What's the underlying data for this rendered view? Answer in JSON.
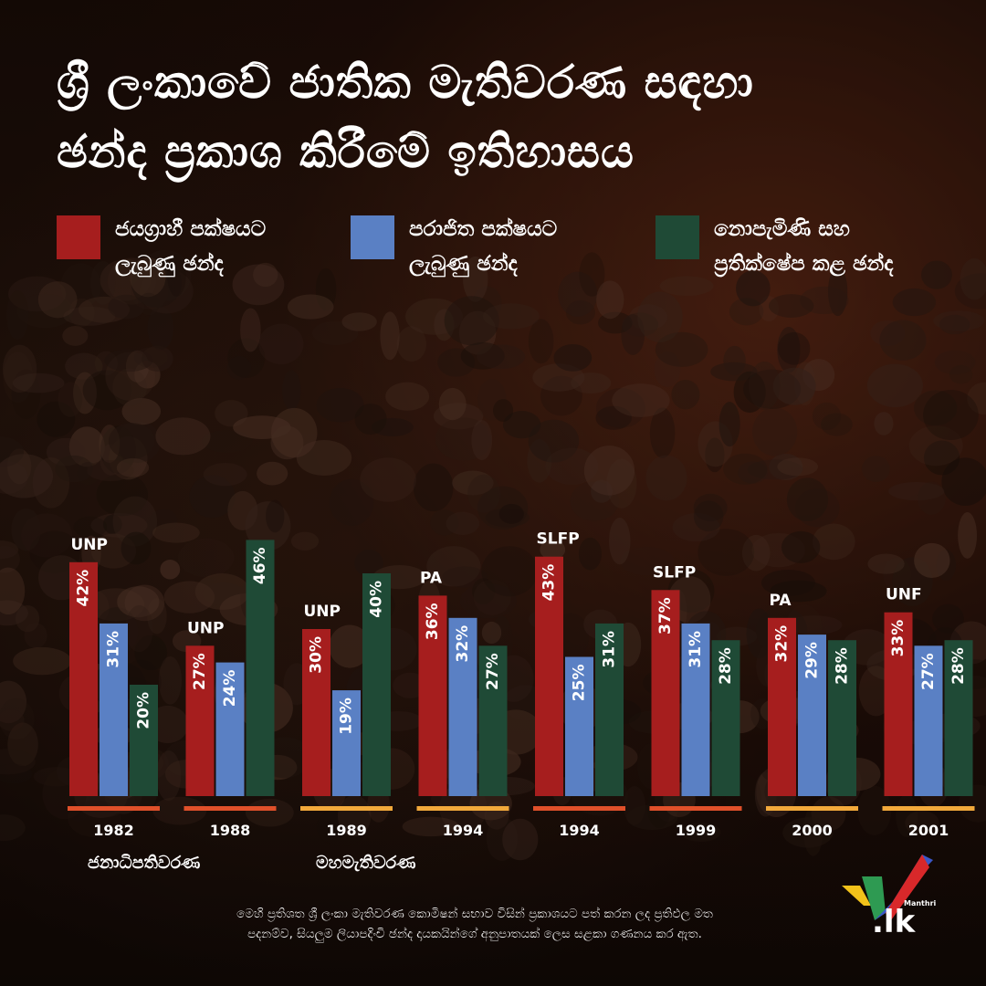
{
  "title": {
    "line1": "ශ්‍රී ලංකාවේ ජාතික මැතිවරණ සඳහා",
    "line2": "ඡන්ද ප්‍රකාශ කිරීමේ ඉතිහාසය"
  },
  "legend": [
    {
      "line1": "ජයග්‍රාහී පක්ෂයට",
      "line2": "ලැබුණු ඡන්ද",
      "color": "#a61e1e"
    },
    {
      "line1": "පරාජිත පක්ෂයට",
      "line2": "ලැබුණු ඡන්ද",
      "color": "#5a80c4"
    },
    {
      "line1": "නොපැමිණි සහ",
      "line2": "ප්‍රතික්ෂේප කළ ඡන්ද",
      "color": "#1f4a36"
    }
  ],
  "groups": {
    "presidential": "ජනාධිපතිවරණ",
    "parliamentary": "මහමැතිවරණ"
  },
  "chart_data": {
    "type": "bar",
    "categories": [
      "1982",
      "1988",
      "1989",
      "1994",
      "1994",
      "1999",
      "2000",
      "2001"
    ],
    "winner_party": [
      "UNP",
      "UNP",
      "UNP",
      "PA",
      "SLFP",
      "SLFP",
      "PA",
      "UNF"
    ],
    "series": [
      {
        "name": "ජයග්‍රාහී පක්ෂයට ලැබුණු ඡන්ද",
        "color": "#a61e1e",
        "values": [
          42,
          27,
          30,
          36,
          43,
          37,
          32,
          33
        ]
      },
      {
        "name": "පරාජිත පක්ෂයට ලැබුණු ඡන්ද",
        "color": "#5a80c4",
        "values": [
          31,
          24,
          19,
          32,
          25,
          31,
          29,
          27
        ]
      },
      {
        "name": "නොපැමිණි සහ ප්‍රතික්ෂේප කළ ඡන්ද",
        "color": "#1f4a36",
        "values": [
          20,
          46,
          40,
          27,
          31,
          28,
          28,
          28
        ]
      }
    ],
    "value_suffix": "%",
    "underline_colors": [
      "#e0502a",
      "#e0502a",
      "#f2a93b",
      "#f2a93b",
      "#e0502a",
      "#e0502a",
      "#f2a93b",
      "#f2a93b"
    ],
    "ylim": [
      0,
      50
    ],
    "grid": false,
    "legend_position": "top"
  },
  "footnote": {
    "line1": "මෙහි ප්‍රතිශත ශ්‍රී ලංකා මැතිවරණ කොමිෂන් සභාව විසින් ප්‍රකාශයට පත් කරන ලද ප්‍රතිඵල මත",
    "line2": "පදනම්ව, සියලුම ලියාපදිංචි ඡන්ද දායකයින්ගේ අනුපාතයක් ලෙස සළකා ගණනය කර ඇත."
  },
  "logo": {
    "small": "Manthri",
    "text": ".lk"
  }
}
